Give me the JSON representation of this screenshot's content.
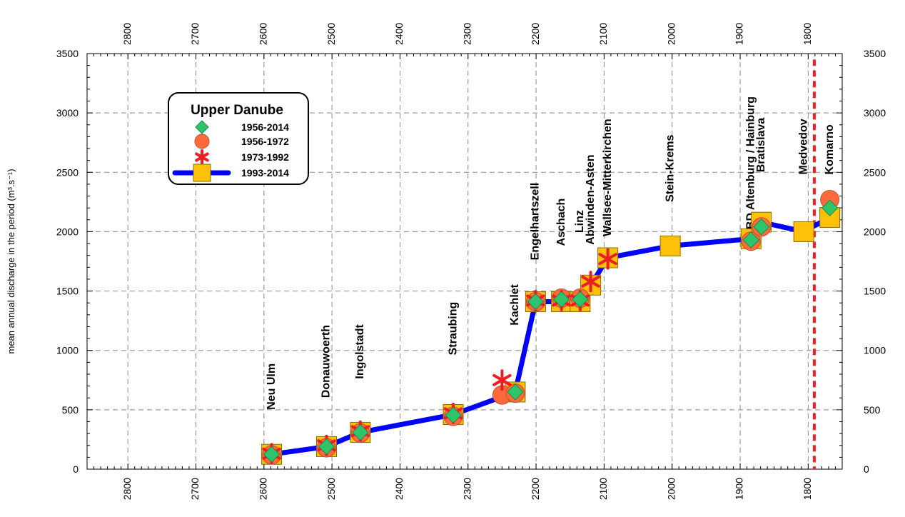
{
  "chart_data": {
    "type": "line",
    "legend": {
      "title": "Upper Danube",
      "placement": "top-left"
    },
    "xlabel": "",
    "ylabel": "mean annual discharge in the period (m³.s⁻¹)",
    "xlim": [
      2860,
      1750
    ],
    "ylim": [
      0,
      3500
    ],
    "x_ticks": [
      2800,
      2700,
      2600,
      2500,
      2400,
      2300,
      2200,
      2100,
      2000,
      1900,
      1800
    ],
    "y_ticks": [
      0,
      500,
      1000,
      1500,
      2000,
      2500,
      3000,
      3500
    ],
    "grid": true,
    "reference_line": {
      "x": 1791,
      "color": "#ee1c25",
      "style": "dashed"
    },
    "stations": [
      {
        "name": "Neu Ulm",
        "x": 2588.7,
        "label_y": 500
      },
      {
        "name": "Donauwoerth",
        "x": 2508.0,
        "label_y": 600
      },
      {
        "name": "Ingolstadt",
        "x": 2458.3,
        "label_y": 760
      },
      {
        "name": "Straubing",
        "x": 2321.7,
        "label_y": 960
      },
      {
        "name": "Kachlet",
        "x": 2230.6,
        "label_y": 1210
      },
      {
        "name": "Engelhartszell",
        "x": 2200.7,
        "label_y": 1760
      },
      {
        "name": "Aschach",
        "x": 2162.7,
        "label_y": 1880
      },
      {
        "name": "Linz",
        "x": 2135.2,
        "label_y": 1990
      },
      {
        "name": "Abwinden-Asten",
        "x": 2119.7,
        "label_y": 1890
      },
      {
        "name": "Wallsee-Mitterkirchen",
        "x": 2094.5,
        "label_y": 1960
      },
      {
        "name": "Stein-Krems",
        "x": 2002.7,
        "label_y": 2250
      },
      {
        "name": "BD Altenburg / Hainburg",
        "x": 1884.0,
        "label_y": 2020
      },
      {
        "name": "Bratislava",
        "x": 1868.8,
        "label_y": 2500
      },
      {
        "name": "Medvedov",
        "x": 1806.5,
        "label_y": 2480
      },
      {
        "name": "Komarno",
        "x": 1768.2,
        "label_y": 2480
      }
    ],
    "series": [
      {
        "name": "1956-2014",
        "marker": "diamond",
        "color": "#2ec56a",
        "x": [
          2588.7,
          2508.0,
          2458.3,
          2321.7,
          2230.6,
          2200.7,
          2162.7,
          2135.2,
          1884.0,
          1868.8,
          1768.2
        ],
        "values": [
          125,
          190,
          310,
          455,
          650,
          1410,
          1430,
          1430,
          1930,
          2040,
          2200
        ]
      },
      {
        "name": "1956-1972",
        "marker": "circle",
        "color": "#ff6a3c",
        "x": [
          2588.7,
          2508.0,
          2458.3,
          2321.7,
          2250.0,
          2230.6,
          2200.7,
          2162.7,
          2135.2,
          1884.0,
          1868.8,
          1768.2
        ],
        "values": [
          120,
          180,
          305,
          445,
          625,
          640,
          1410,
          1440,
          1440,
          1920,
          2040,
          2270
        ]
      },
      {
        "name": "1973-1992",
        "marker": "star",
        "color": "#ee1c25",
        "x": [
          2588.7,
          2508.0,
          2458.3,
          2321.7,
          2250.0,
          2200.7,
          2162.7,
          2135.2,
          2119.7,
          2094.5
        ],
        "values": [
          130,
          200,
          320,
          470,
          750,
          1420,
          1420,
          1420,
          1580,
          1770
        ]
      },
      {
        "name": "1993-2014",
        "marker": "square",
        "color": "#ffc107",
        "line_color": "#0000ff",
        "x": [
          2588.7,
          2508.0,
          2458.3,
          2321.7,
          2230.6,
          2200.7,
          2162.7,
          2135.2,
          2119.7,
          2094.5,
          2002.7,
          1884.0,
          1868.8,
          1806.5,
          1768.2
        ],
        "values": [
          125,
          190,
          310,
          460,
          650,
          1410,
          1410,
          1410,
          1550,
          1780,
          1880,
          1940,
          2080,
          2000,
          2120
        ]
      }
    ]
  }
}
